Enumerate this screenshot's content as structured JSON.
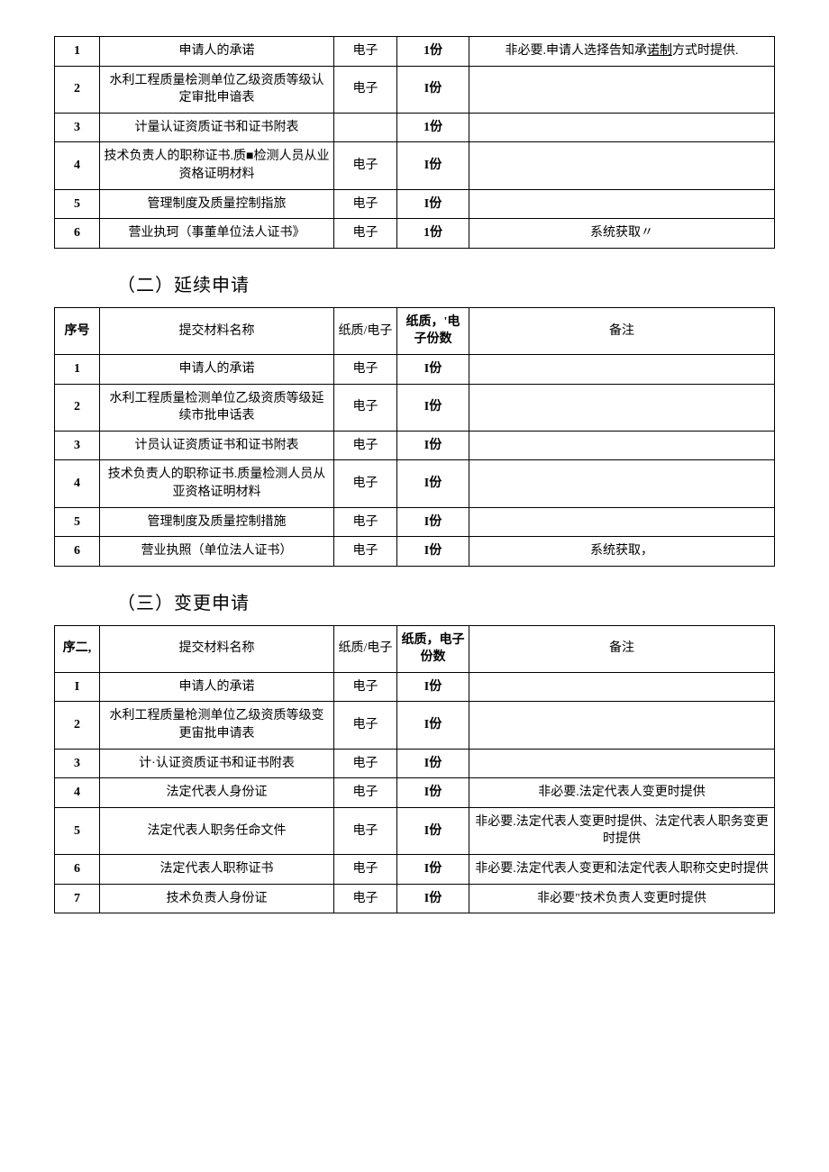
{
  "tables": [
    {
      "heading": null,
      "headers": null,
      "rows": [
        {
          "seq": "1",
          "name": "申请人的承诺",
          "type": "电子",
          "copies": "1份",
          "note": "非必要.申请人选择告知承诺制方式时提供.",
          "noteUnderlineWords": [
            "诺制"
          ]
        },
        {
          "seq": "2",
          "name": "水利工程质量桧测单位乙级资质等级认定审批申谙表",
          "type": "电子",
          "copies": "I份",
          "note": ""
        },
        {
          "seq": "3",
          "name": "计量认证资质证书和证书附表",
          "type": "",
          "copies": "1份",
          "note": ""
        },
        {
          "seq": "4",
          "name": "技术负责人的职称证书.质■检测人员从业资格证明材料",
          "type": "电子",
          "copies": "I份",
          "note": ""
        },
        {
          "seq": "5",
          "name": "管理制度及质量控制指旅",
          "type": "电子",
          "copies": "I份",
          "note": ""
        },
        {
          "seq": "6",
          "name": "营业执珂（事董单位法人证书》",
          "type": "电子",
          "copies": "1份",
          "note": "系统获取〃"
        }
      ]
    },
    {
      "heading": "（二）延续申请",
      "headers": {
        "seq": "序号",
        "name": "提交材料名称",
        "type": "纸质/电子",
        "copies": "纸质，'电子份数",
        "note": "备注"
      },
      "rows": [
        {
          "seq": "1",
          "name": "申请人的承诺",
          "type": "电子",
          "copies": "I份",
          "note": ""
        },
        {
          "seq": "2",
          "name": "水利工程质量检测单位乙级资质等级延续市批申话表",
          "type": "电子",
          "copies": "I份",
          "note": ""
        },
        {
          "seq": "3",
          "name": "计员认证资质证书和证书附表",
          "type": "电子",
          "copies": "I份",
          "note": ""
        },
        {
          "seq": "4",
          "name": "技术负责人的职称证书.质量检测人员从亚资格证明材料",
          "type": "电子",
          "copies": "I份",
          "note": ""
        },
        {
          "seq": "5",
          "name": "管理制度及质量控制措施",
          "type": "电子",
          "copies": "I份",
          "note": ""
        },
        {
          "seq": "6",
          "name": "营业执照（单位法人证书）",
          "type": "电子",
          "copies": "I份",
          "note": "系统获取，"
        }
      ]
    },
    {
      "heading": "（三）变更申请",
      "headers": {
        "seq": "序二,",
        "name": "提交材料名称",
        "type": "纸质/电子",
        "copies": "纸质，电子份数",
        "note": "备注"
      },
      "rows": [
        {
          "seq": "I",
          "name": "申请人的承诺",
          "type": "电子",
          "copies": "I份",
          "note": ""
        },
        {
          "seq": "2",
          "name": "水利工程质量枪测单位乙级资质等级变更宙批申请表",
          "type": "电子",
          "copies": "I份",
          "note": ""
        },
        {
          "seq": "3",
          "name": "计·认证资质证书和证书附表",
          "type": "电子",
          "copies": "I份",
          "note": ""
        },
        {
          "seq": "4",
          "name": "法定代表人身份证",
          "type": "电子",
          "copies": "I份",
          "note": "非必要.法定代表人变更时提供",
          "noteAlign": "bottom"
        },
        {
          "seq": "5",
          "name": "法定代表人职务任命文件",
          "type": "电子",
          "copies": "I份",
          "note": "非必要.法定代表人变更时提供、法定代表人职务变更时提供"
        },
        {
          "seq": "6",
          "name": "法定代表人职称证书",
          "type": "电子",
          "copies": "I份",
          "note": "非必要.法定代表人变更和法定代表人职称交史时提供"
        },
        {
          "seq": "7",
          "name": "技术负责人身份证",
          "type": "电子",
          "copies": "I份",
          "note": "非必要\"技术负责人变更时提供"
        }
      ]
    }
  ]
}
